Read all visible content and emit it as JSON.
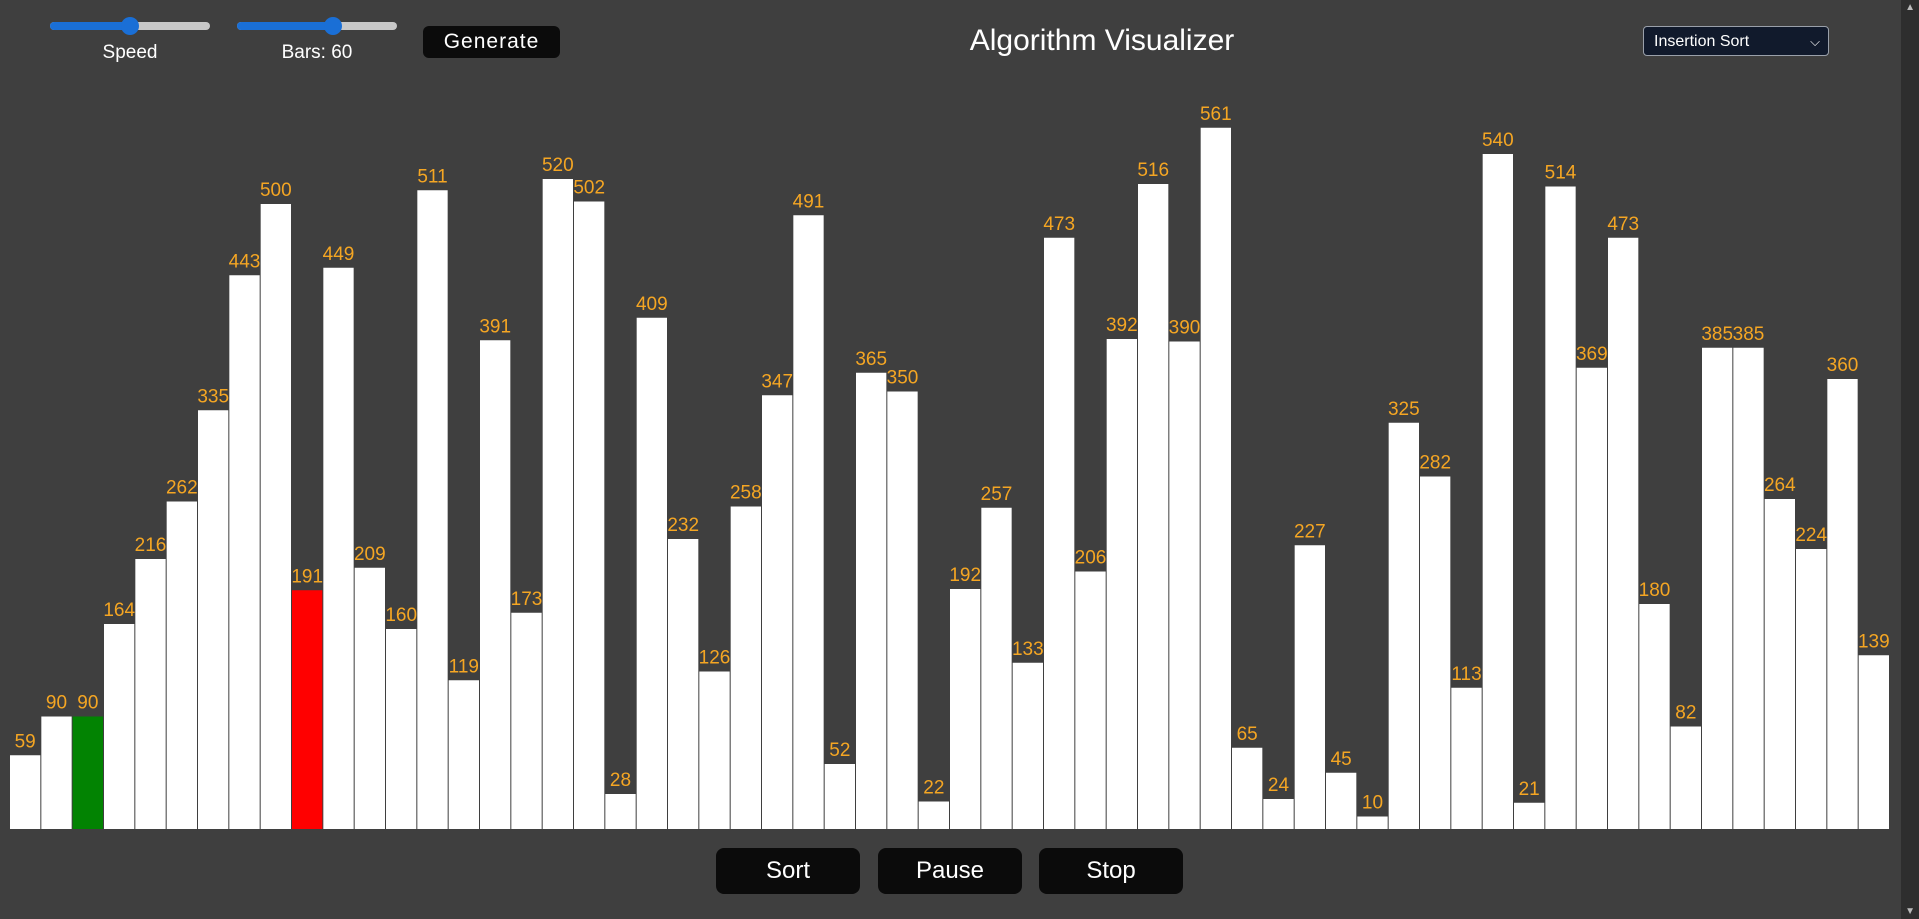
{
  "controls": {
    "speed": {
      "label": "Speed",
      "value": 0.5
    },
    "bars": {
      "label": "Bars: 60",
      "value": 0.6
    },
    "generate_label": "Generate"
  },
  "header": {
    "title": "Algorithm Visualizer"
  },
  "algorithm_select": {
    "selected": "Insertion Sort"
  },
  "bars": {
    "values": [
      59,
      90,
      90,
      164,
      216,
      262,
      335,
      443,
      500,
      191,
      449,
      209,
      160,
      511,
      119,
      391,
      173,
      520,
      502,
      28,
      409,
      232,
      126,
      258,
      347,
      491,
      52,
      365,
      350,
      22,
      192,
      257,
      133,
      473,
      206,
      392,
      516,
      390,
      561,
      65,
      24,
      227,
      45,
      10,
      325,
      282,
      113,
      540,
      21,
      514,
      369,
      473,
      180,
      82,
      385,
      385,
      264,
      224,
      360,
      139
    ],
    "highlight_green_index": 2,
    "highlight_red_index": 9,
    "colors": {
      "default": "#ffffff",
      "green": "#028302",
      "red": "#ff0000",
      "label": "#f5a623"
    }
  },
  "actions": {
    "sort_label": "Sort",
    "pause_label": "Pause",
    "stop_label": "Stop"
  }
}
